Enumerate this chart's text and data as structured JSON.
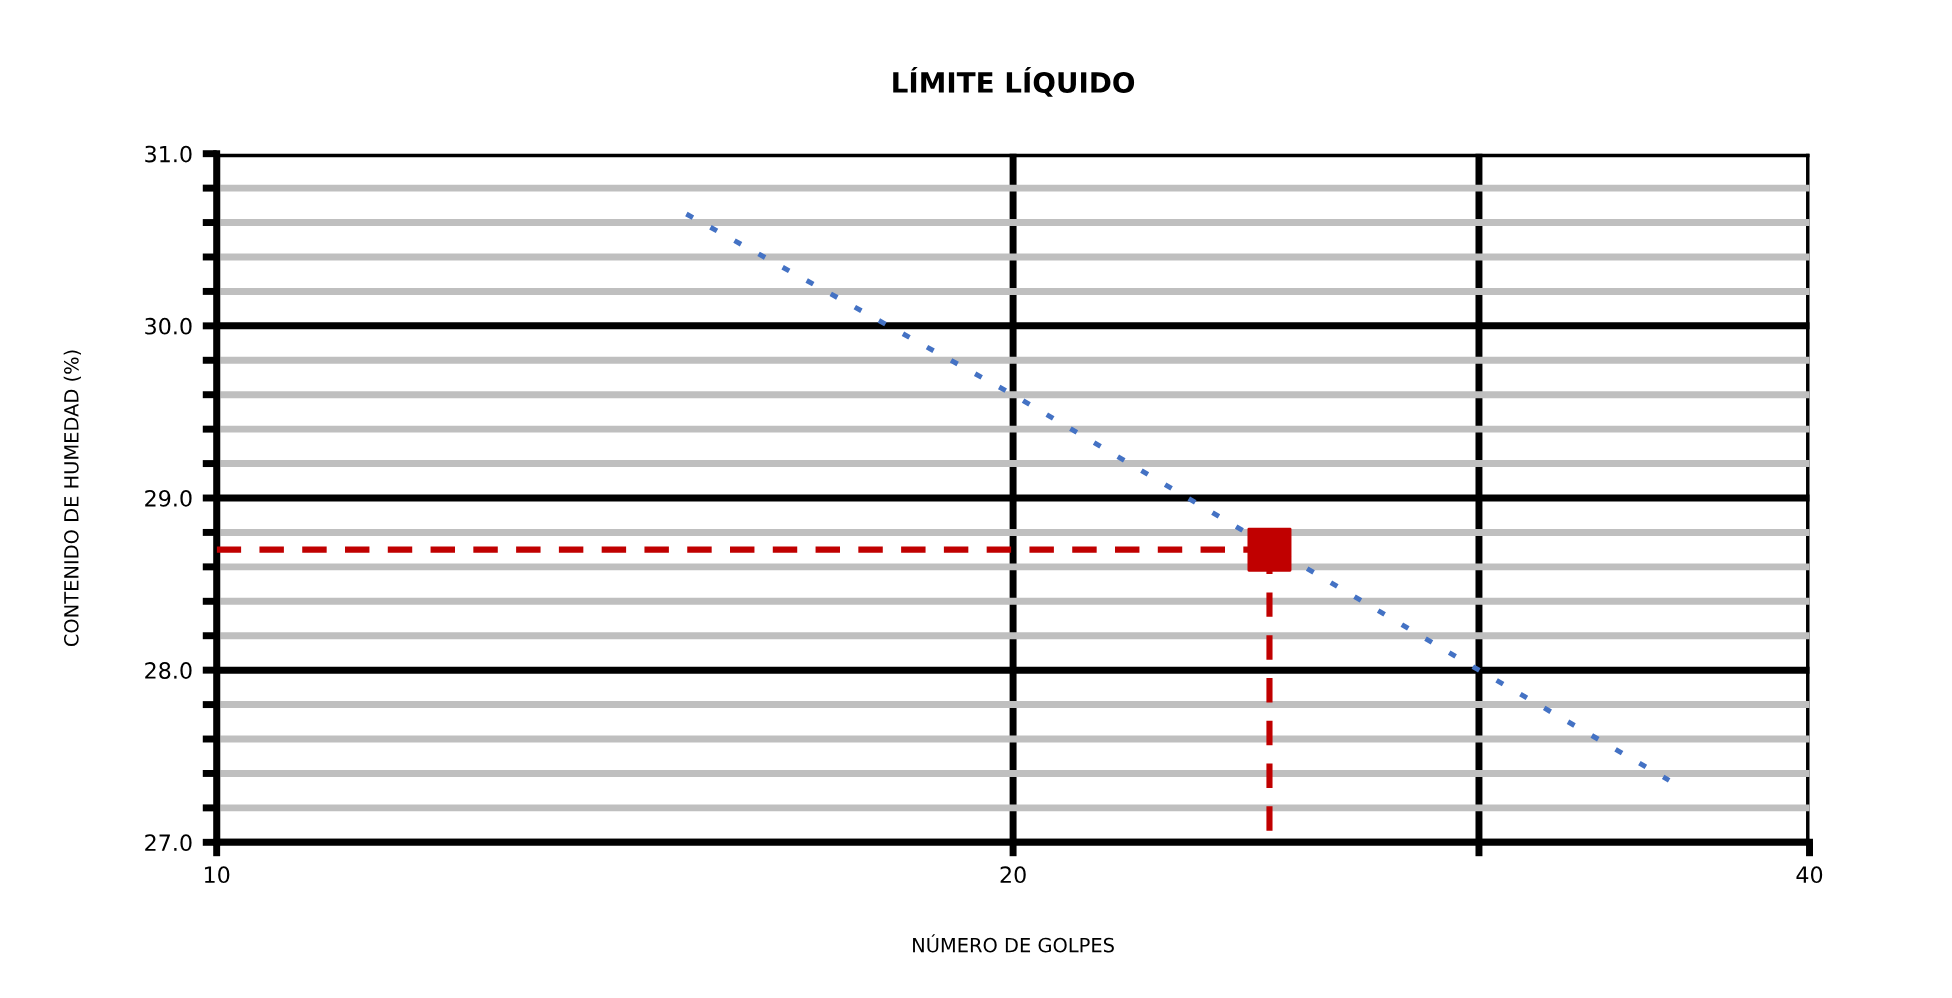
{
  "chart_data": {
    "type": "line",
    "title": "LÍMITE LÍQUIDO",
    "xlabel": "NÚMERO DE GOLPES",
    "ylabel": "CONTENIDO DE HUMEDAD (%)",
    "log": "x",
    "xlim": [
      10,
      40
    ],
    "xticks": [
      10,
      20,
      {
        "value": 30,
        "label": null
      },
      40
    ],
    "ylim": [
      27.0,
      31.0
    ],
    "yticks": [
      {
        "value": 27.0,
        "label": "27.0"
      },
      {
        "value": 27.2,
        "label": null
      },
      {
        "value": 27.4,
        "label": null
      },
      {
        "value": 27.6,
        "label": null
      },
      {
        "value": 27.8,
        "label": null
      },
      {
        "value": 28.0,
        "label": "28.0"
      },
      {
        "value": 28.2,
        "label": null
      },
      {
        "value": 28.4,
        "label": null
      },
      {
        "value": 28.6,
        "label": null
      },
      {
        "value": 28.8,
        "label": null
      },
      {
        "value": 29.0,
        "label": "29.0"
      },
      {
        "value": 29.2,
        "label": null
      },
      {
        "value": 29.4,
        "label": null
      },
      {
        "value": 29.6,
        "label": null
      },
      {
        "value": 29.8,
        "label": null
      },
      {
        "value": 30.0,
        "label": "30.0"
      },
      {
        "value": 30.2,
        "label": null
      },
      {
        "value": 30.4,
        "label": null
      },
      {
        "value": 30.6,
        "label": null
      },
      {
        "value": 30.8,
        "label": null
      },
      {
        "value": 31.0,
        "label": "31.0"
      }
    ],
    "grid": true,
    "legend": false,
    "series": [
      {
        "line_style": "dotted",
        "marker": "none",
        "color": "#4472c4",
        "x": [
          15.05,
          20,
          30,
          35.4
        ],
        "values": [
          30.65,
          29.6,
          28.0,
          27.36
        ]
      },
      {
        "line_style": "dashed",
        "marker": "none",
        "color": "#c00000",
        "x": [
          10,
          25
        ],
        "values": [
          28.7,
          28.7
        ]
      },
      {
        "line_style": "dashed",
        "marker": "none",
        "color": "#c00000",
        "x": [
          25,
          25
        ],
        "values": [
          28.7,
          27.0
        ]
      },
      {
        "type": "scatter",
        "marker": "square",
        "color": "#c00000",
        "x": [
          25
        ],
        "values": [
          28.7
        ]
      }
    ]
  }
}
